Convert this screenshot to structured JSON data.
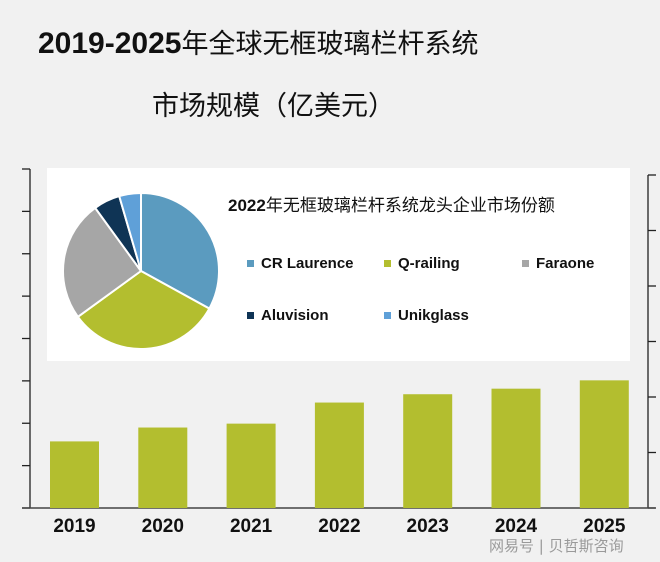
{
  "title": {
    "line1_num": "2019-2025",
    "line1_cn": "年全球无框玻璃栏杆系统",
    "line2": "市场规模（亿美元）"
  },
  "inset": {
    "title_num": "2022",
    "title_cn": "年无框玻璃栏杆系统龙头企业市场份额"
  },
  "watermark": "网易号 | 贝哲斯咨询",
  "colors": {
    "bar": "#b3be2f",
    "cr_laurence": "#5b9bbf",
    "q_railing": "#b3be2f",
    "faraone": "#a6a6a6",
    "aluvision": "#0f3455",
    "unikglass": "#5fa0d8",
    "background": "#f1f1f1"
  },
  "chart_data": [
    {
      "type": "bar",
      "title": "2019-2025年全球无框玻璃栏杆系统市场规模（亿美元）",
      "categories": [
        "2019",
        "2020",
        "2021",
        "2022",
        "2023",
        "2024",
        "2025"
      ],
      "values": [
        1.2,
        1.45,
        1.52,
        1.9,
        2.05,
        2.15,
        2.3
      ],
      "xlabel": "",
      "ylabel": "亿美元",
      "note": "values estimated from bar heights relative to right-axis ticks (no tick labels shown); right axis 6 divisions, assumed unit per division",
      "ylim": [
        0,
        6
      ],
      "grid": false,
      "legend": null
    },
    {
      "type": "pie",
      "title": "2022年无框玻璃栏杆系统龙头企业市场份额",
      "categories": [
        "CR Laurence",
        "Q-railing",
        "Faraone",
        "Aluvision",
        "Unikglass"
      ],
      "values": [
        33,
        32,
        25,
        5.5,
        4.5
      ],
      "unit": "%",
      "note": "shares estimated from slice angles; no data labels shown",
      "legend_position": "right"
    }
  ],
  "legend": [
    {
      "label": "CR Laurence",
      "color": "#5b9bbf"
    },
    {
      "label": "Q-railing",
      "color": "#b3be2f"
    },
    {
      "label": "Faraone",
      "color": "#a6a6a6"
    },
    {
      "label": "Aluvision",
      "color": "#0f3455"
    },
    {
      "label": "Unikglass",
      "color": "#5fa0d8"
    }
  ]
}
